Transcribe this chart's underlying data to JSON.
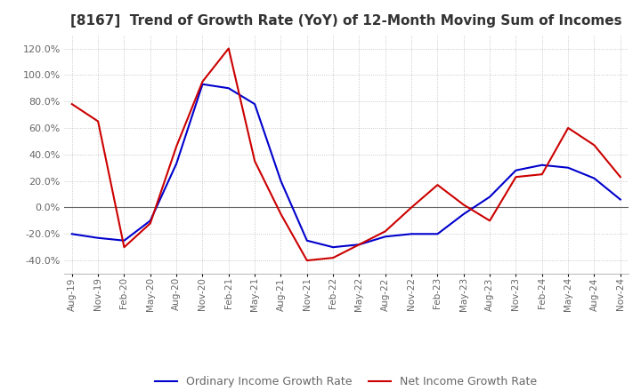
{
  "title": "[8167]  Trend of Growth Rate (YoY) of 12-Month Moving Sum of Incomes",
  "title_fontsize": 11,
  "ylim": [
    -50,
    130
  ],
  "yticks": [
    -40,
    -20,
    0,
    20,
    40,
    60,
    80,
    100,
    120
  ],
  "ytick_labels": [
    "-40.0%",
    "-20.0%",
    "0.0%",
    "20.0%",
    "40.0%",
    "60.0%",
    "80.0%",
    "100.0%",
    "120.0%"
  ],
  "x_labels": [
    "Aug-19",
    "Nov-19",
    "Feb-20",
    "May-20",
    "Aug-20",
    "Nov-20",
    "Feb-21",
    "May-21",
    "Aug-21",
    "Nov-21",
    "Feb-22",
    "May-22",
    "Aug-22",
    "Nov-22",
    "Feb-23",
    "May-23",
    "Aug-23",
    "Nov-23",
    "Feb-24",
    "May-24",
    "Aug-24",
    "Nov-24"
  ],
  "ordinary_income": [
    -20,
    -23,
    -25,
    -10,
    33,
    93,
    90,
    78,
    20,
    -25,
    -30,
    -28,
    -22,
    -20,
    -20,
    -5,
    8,
    28,
    32,
    30,
    22,
    6
  ],
  "net_income": [
    78,
    65,
    -30,
    -12,
    46,
    95,
    120,
    35,
    -5,
    -40,
    -38,
    -28,
    -18,
    0,
    17,
    2,
    -10,
    23,
    25,
    60,
    47,
    23
  ],
  "ordinary_color": "#0000cc",
  "net_color": "#cc0000",
  "line_width": 1.5,
  "legend_ordinary": "Ordinary Income Growth Rate",
  "legend_net": "Net Income Growth Rate",
  "background_color": "#ffffff",
  "grid_color": "#aaaaaa",
  "tick_color": "#666666",
  "title_color": "#333333"
}
